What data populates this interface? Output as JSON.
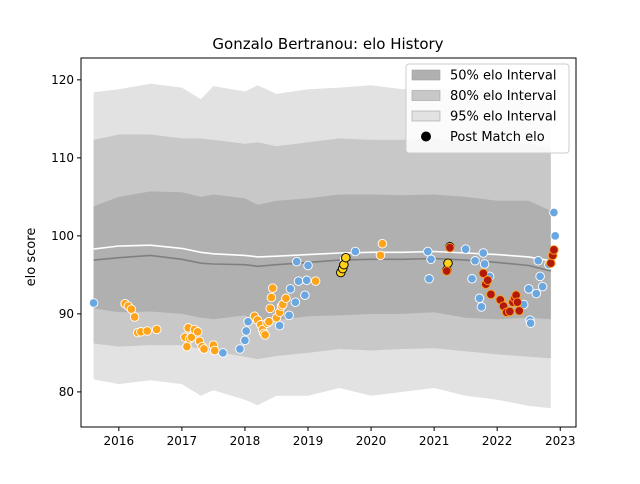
{
  "chart_data": {
    "type": "scatter",
    "title": "Gonzalo Bertranou: elo History",
    "xlabel": "",
    "ylabel": "elo score",
    "xlim": [
      2015.4,
      2023.25
    ],
    "ylim": [
      75.5,
      122.8
    ],
    "x_ticks": [
      2016,
      2017,
      2018,
      2019,
      2020,
      2021,
      2022,
      2023
    ],
    "y_ticks": [
      80,
      90,
      100,
      110,
      120
    ],
    "legend_position": "top-right",
    "legend": [
      {
        "label": "50% elo Interval",
        "kind": "band",
        "color": "#b0b0b0"
      },
      {
        "label": "80% elo Interval",
        "kind": "band",
        "color": "#c8c8c8"
      },
      {
        "label": "95% elo Interval",
        "kind": "band",
        "color": "#e2e2e2"
      },
      {
        "label": "Post Match elo",
        "kind": "marker",
        "color": "#000000"
      }
    ],
    "band_x": [
      2015.6,
      2016.0,
      2016.5,
      2017.0,
      2017.3,
      2017.5,
      2018.0,
      2018.2,
      2018.5,
      2019.0,
      2019.5,
      2020.0,
      2020.5,
      2021.0,
      2021.5,
      2022.0,
      2022.5,
      2022.85
    ],
    "band_95_upper": [
      118.4,
      118.8,
      119.5,
      119.0,
      117.5,
      119.2,
      118.5,
      119.3,
      118.2,
      118.8,
      119.0,
      119.3,
      118.8,
      119.0,
      118.5,
      118.8,
      118.0,
      117.6
    ],
    "band_95_lower": [
      81.6,
      81.0,
      81.5,
      81.0,
      79.5,
      80.2,
      79.0,
      78.3,
      79.5,
      79.5,
      80.5,
      79.5,
      80.0,
      80.5,
      79.5,
      79.0,
      78.2,
      77.9
    ],
    "band_80_upper": [
      112.3,
      113.0,
      113.0,
      112.5,
      112.5,
      112.3,
      111.8,
      112.0,
      111.5,
      112.0,
      112.5,
      112.3,
      112.3,
      112.5,
      112.0,
      112.2,
      111.8,
      111.2
    ],
    "band_80_lower": [
      86.2,
      85.8,
      86.0,
      86.0,
      85.5,
      85.2,
      84.5,
      84.2,
      84.6,
      85.0,
      85.5,
      85.3,
      85.5,
      85.6,
      85.2,
      84.8,
      84.5,
      84.3
    ],
    "band_50_upper": [
      103.8,
      105.0,
      105.7,
      105.6,
      105.0,
      105.3,
      104.8,
      104.0,
      104.5,
      104.8,
      105.3,
      105.3,
      105.2,
      105.3,
      105.0,
      104.5,
      104.5,
      103.2
    ],
    "band_50_lower": [
      90.7,
      90.2,
      90.3,
      90.0,
      89.5,
      89.3,
      89.8,
      89.0,
      89.2,
      89.7,
      89.8,
      90.0,
      90.0,
      90.2,
      89.5,
      89.3,
      89.5,
      89.3
    ],
    "mean_x": [
      2015.6,
      2016.0,
      2016.5,
      2017.0,
      2017.3,
      2017.5,
      2018.0,
      2018.2,
      2018.5,
      2019.0,
      2019.5,
      2020.0,
      2020.5,
      2021.0,
      2021.5,
      2022.0,
      2022.5,
      2022.85
    ],
    "mean_gray": [
      96.9,
      97.2,
      97.5,
      97.0,
      96.5,
      96.4,
      96.3,
      96.1,
      96.3,
      96.6,
      96.9,
      97.0,
      97.0,
      97.1,
      96.9,
      96.6,
      96.2,
      95.5
    ],
    "mean_white": [
      98.3,
      98.7,
      98.8,
      98.4,
      97.9,
      97.7,
      97.5,
      97.3,
      97.4,
      97.6,
      97.8,
      97.9,
      97.9,
      98.0,
      97.8,
      97.6,
      97.3,
      96.8
    ],
    "series": [
      {
        "color": "#6aa7e0",
        "edge": "#ffffff",
        "points": [
          [
            2015.6,
            91.4
          ],
          [
            2017.65,
            85.0
          ],
          [
            2017.92,
            85.5
          ],
          [
            2018.0,
            86.6
          ],
          [
            2018.02,
            87.8
          ],
          [
            2018.05,
            89.0
          ],
          [
            2018.55,
            88.5
          ],
          [
            2018.7,
            89.8
          ],
          [
            2018.72,
            93.2
          ],
          [
            2018.8,
            91.5
          ],
          [
            2018.85,
            94.2
          ],
          [
            2018.82,
            96.7
          ],
          [
            2018.95,
            92.4
          ],
          [
            2018.98,
            94.3
          ],
          [
            2019.0,
            96.2
          ],
          [
            2019.75,
            98.0
          ],
          [
            2020.9,
            98.0
          ],
          [
            2020.92,
            94.5
          ],
          [
            2020.95,
            97.0
          ],
          [
            2021.5,
            98.3
          ],
          [
            2021.6,
            94.5
          ],
          [
            2021.65,
            96.8
          ],
          [
            2021.72,
            92.0
          ],
          [
            2021.75,
            90.9
          ],
          [
            2021.78,
            97.8
          ],
          [
            2021.8,
            96.4
          ],
          [
            2021.88,
            94.8
          ],
          [
            2022.42,
            91.2
          ],
          [
            2022.5,
            93.2
          ],
          [
            2022.52,
            89.2
          ],
          [
            2022.53,
            88.8
          ],
          [
            2022.62,
            92.6
          ],
          [
            2022.65,
            96.8
          ],
          [
            2022.68,
            94.8
          ],
          [
            2022.72,
            93.5
          ],
          [
            2022.82,
            96.3
          ],
          [
            2022.9,
            103.0
          ],
          [
            2022.92,
            100.0
          ]
        ]
      },
      {
        "color": "#ffa318",
        "edge": "#ffffff",
        "points": [
          [
            2016.1,
            91.3
          ],
          [
            2016.15,
            91.0
          ],
          [
            2016.2,
            90.6
          ],
          [
            2016.25,
            89.6
          ],
          [
            2016.3,
            87.6
          ],
          [
            2016.35,
            87.7
          ],
          [
            2016.45,
            87.8
          ],
          [
            2016.6,
            88.0
          ],
          [
            2017.05,
            87.0
          ],
          [
            2017.08,
            85.8
          ],
          [
            2017.1,
            88.2
          ],
          [
            2017.12,
            86.8
          ],
          [
            2017.15,
            87.0
          ],
          [
            2017.2,
            88.0
          ],
          [
            2017.25,
            87.7
          ],
          [
            2017.28,
            86.5
          ],
          [
            2017.32,
            85.8
          ],
          [
            2017.35,
            85.5
          ],
          [
            2017.5,
            86.0
          ],
          [
            2017.52,
            85.3
          ],
          [
            2018.15,
            89.7
          ],
          [
            2018.2,
            89.2
          ],
          [
            2018.25,
            88.6
          ],
          [
            2018.28,
            88.0
          ],
          [
            2018.3,
            87.5
          ],
          [
            2018.32,
            87.3
          ],
          [
            2018.35,
            88.8
          ],
          [
            2018.38,
            89.0
          ],
          [
            2018.4,
            90.7
          ],
          [
            2018.42,
            92.1
          ],
          [
            2018.44,
            93.3
          ],
          [
            2018.5,
            89.5
          ],
          [
            2018.55,
            90.2
          ],
          [
            2018.58,
            91.0
          ],
          [
            2018.6,
            91.2
          ],
          [
            2018.65,
            92.0
          ],
          [
            2019.12,
            94.2
          ],
          [
            2019.58,
            97.0
          ],
          [
            2020.15,
            97.5
          ],
          [
            2020.18,
            99.0
          ]
        ]
      },
      {
        "color": "#ffd21a",
        "edge": "#000000",
        "points": [
          [
            2019.52,
            95.3
          ],
          [
            2019.55,
            95.8
          ],
          [
            2019.57,
            96.3
          ],
          [
            2019.6,
            97.2
          ],
          [
            2021.2,
            95.6
          ],
          [
            2021.22,
            96.5
          ],
          [
            2021.25,
            98.6
          ]
        ]
      },
      {
        "color": "#b21a0e",
        "edge": "#ffa318",
        "points": [
          [
            2021.2,
            95.5
          ],
          [
            2021.25,
            98.5
          ],
          [
            2021.78,
            95.2
          ],
          [
            2021.82,
            93.8
          ],
          [
            2021.85,
            94.3
          ],
          [
            2021.9,
            92.5
          ],
          [
            2022.05,
            91.8
          ],
          [
            2022.1,
            91.0
          ],
          [
            2022.15,
            90.2
          ],
          [
            2022.2,
            90.3
          ],
          [
            2022.25,
            91.5
          ],
          [
            2022.28,
            92.0
          ],
          [
            2022.3,
            92.4
          ],
          [
            2022.32,
            91.5
          ],
          [
            2022.35,
            90.4
          ],
          [
            2022.85,
            96.5
          ],
          [
            2022.88,
            97.5
          ],
          [
            2022.9,
            98.2
          ]
        ]
      }
    ]
  }
}
